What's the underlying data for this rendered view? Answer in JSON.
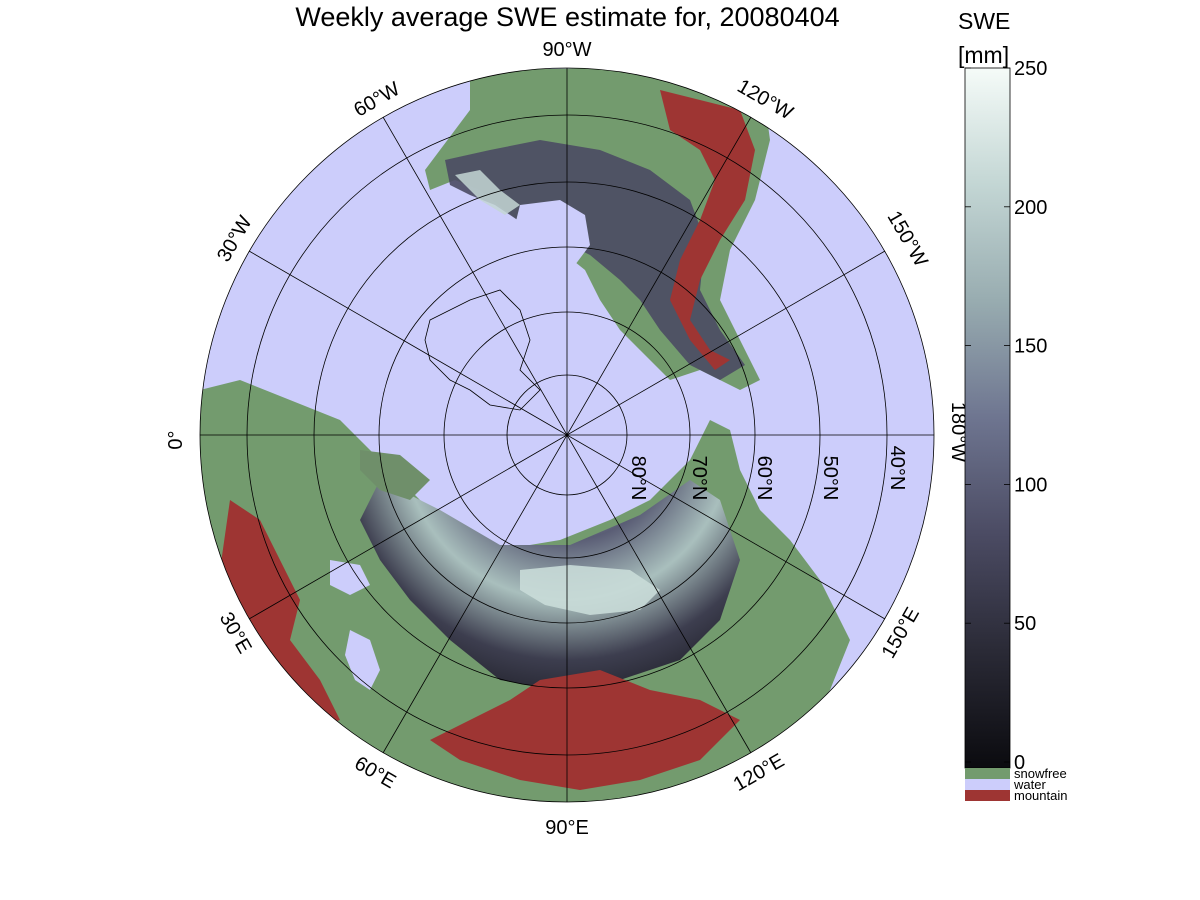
{
  "title": "Weekly average SWE estimate for, 20080404",
  "colorbar": {
    "title_line1": "SWE",
    "title_line2": "[mm]",
    "ticks": [
      0,
      50,
      100,
      150,
      200,
      250
    ],
    "range": [
      0,
      250
    ],
    "gradient_colors": [
      "#0b0b0f",
      "#2a2a36",
      "#4b4b63",
      "#6e7590",
      "#98acb0",
      "#c3d6d4",
      "#f5fbf8"
    ],
    "categories": [
      {
        "name": "snowfree",
        "color": "#739b6e"
      },
      {
        "name": "water",
        "color": "#cccdfb"
      },
      {
        "name": "mountain",
        "color": "#9e3533"
      }
    ]
  },
  "map": {
    "water_color": "#cccdfb",
    "land_color": "#739b6e",
    "mountain_color": "#9e3533",
    "lon_labels": {
      "w90": "90°W",
      "w60": "60°W",
      "w30": "30°W",
      "lon0": "0°",
      "w120": "120°W",
      "w150": "150°W",
      "w180": "180°W",
      "e30": "30°E",
      "e60": "60°E",
      "e90": "90°E",
      "e120": "120°E",
      "e150": "150°E"
    },
    "lat_labels": {
      "n80": "80°N",
      "n70": "70°N",
      "n60": "60°N",
      "n50": "50°N",
      "n40": "40°N"
    }
  }
}
